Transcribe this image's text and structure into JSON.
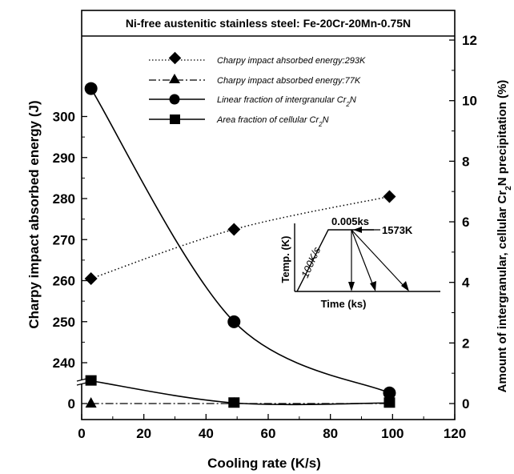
{
  "chart_data": {
    "type": "line",
    "title": "Ni-free austenitic stainless steel: Fe-20Cr-20Mn-0.75N",
    "xlabel": "Cooling rate (K/s)",
    "ylabel_left": "Charpy impact absorbed energy (J)",
    "ylabel_right_parts": [
      "Amount of intergranular, cellular Cr",
      "2",
      "N precipitation (%)"
    ],
    "xlim": [
      0,
      120
    ],
    "x_ticks": [
      "0",
      "20",
      "40",
      "60",
      "80",
      "100",
      "120"
    ],
    "left_axis": {
      "note": "broken axis: lower section shows 0, upper section 235-300",
      "ticks": [
        "0",
        "240",
        "250",
        "260",
        "270",
        "280",
        "290",
        "300"
      ]
    },
    "ylim_right": [
      0,
      12
    ],
    "right_ticks": [
      "0",
      "2",
      "4",
      "6",
      "8",
      "10",
      "12"
    ],
    "series": [
      {
        "name": "Charpy impact ahsorbed energy:293K",
        "axis": "left",
        "marker": "diamond",
        "line": "dotted",
        "x": [
          3,
          49,
          99
        ],
        "y": [
          260.5,
          272.5,
          280.5
        ]
      },
      {
        "name": "Charpy impact absorbed energy:77K",
        "axis": "left",
        "marker": "triangle",
        "line": "dashdot",
        "x": [
          3,
          49,
          99
        ],
        "y": [
          3,
          5,
          1
        ]
      },
      {
        "name_parts": [
          "Linear fraction of intergranular Cr",
          "2",
          "N"
        ],
        "axis": "right",
        "marker": "circle",
        "line": "solid",
        "x": [
          3,
          49,
          99
        ],
        "y": [
          10.4,
          2.7,
          0.35
        ]
      },
      {
        "name_parts": [
          "Area fraction of cellular Cr",
          "2",
          "N"
        ],
        "axis": "right",
        "marker": "square",
        "line": "solid",
        "x": [
          3,
          49,
          99
        ],
        "y": [
          0.75,
          0.02,
          0.02
        ]
      }
    ],
    "inset": {
      "ylabel": "Temp. (K)",
      "xlabel": "Time (ks)",
      "rate_label": "100K/s",
      "hold_label": "0.005ks",
      "temp_label": "1573K"
    }
  }
}
